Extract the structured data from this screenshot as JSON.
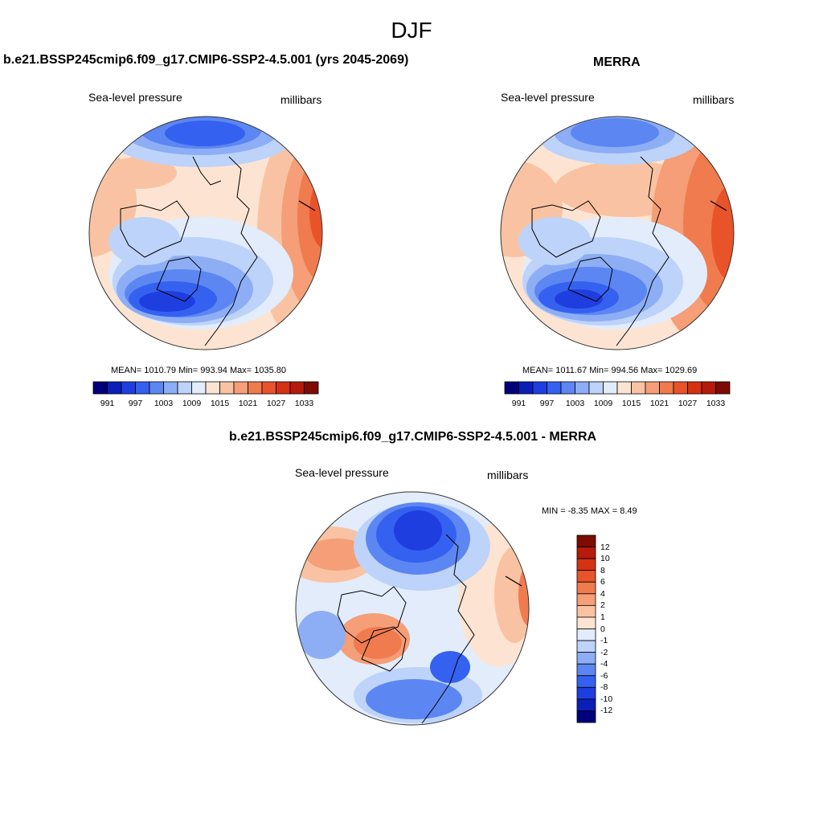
{
  "figure_title": "DJF",
  "panels": [
    {
      "title": "b.e21.BSSP245cmip6.f09_g17.CMIP6-SSP2-4.5.001 (yrs 2045-2069)",
      "left_label": "Sea-level pressure",
      "right_label": "millibars",
      "stats": "MEAN= 1010.79  Min= 993.94  Max= 1035.80",
      "colorbar_ticks": [
        "991",
        "997",
        "1003",
        "1009",
        "1015",
        "1021",
        "1027",
        "1033"
      ]
    },
    {
      "title": "MERRA",
      "left_label": "Sea-level pressure",
      "right_label": "millibars",
      "stats": "MEAN= 1011.67  Min= 994.56  Max= 1029.69",
      "colorbar_ticks": [
        "991",
        "997",
        "1003",
        "1009",
        "1015",
        "1021",
        "1027",
        "1033"
      ]
    },
    {
      "title": "b.e21.BSSP245cmip6.f09_g17.CMIP6-SSP2-4.5.001 - MERRA",
      "left_label": "Sea-level pressure",
      "right_label": "millibars",
      "stats": "MIN =  -8.35 MAX =   8.49",
      "colorbar_ticks": [
        "12",
        "10",
        "8",
        "6",
        "4",
        "2",
        "1",
        "0",
        "-1",
        "-2",
        "-4",
        "-6",
        "-8",
        "-10",
        "-12"
      ]
    }
  ],
  "colors": {
    "abs_scale": [
      "#00007a",
      "#0a1fb8",
      "#1f3ee0",
      "#3561f0",
      "#5c86f2",
      "#8daef5",
      "#bdd3f9",
      "#e2ecfb",
      "#fde4d2",
      "#f9c3a3",
      "#f59e77",
      "#f07b4f",
      "#e9532a",
      "#d53212",
      "#b51a0a",
      "#7d0b02"
    ],
    "diff_scale": [
      "#7d0b02",
      "#b51a0a",
      "#d53212",
      "#e9532a",
      "#f07b4f",
      "#f59e77",
      "#f9c3a3",
      "#fde4d2",
      "#e2ecfb",
      "#bdd3f9",
      "#8daef5",
      "#5c86f2",
      "#3561f0",
      "#1f3ee0",
      "#0a1fb8",
      "#00007a"
    ]
  }
}
